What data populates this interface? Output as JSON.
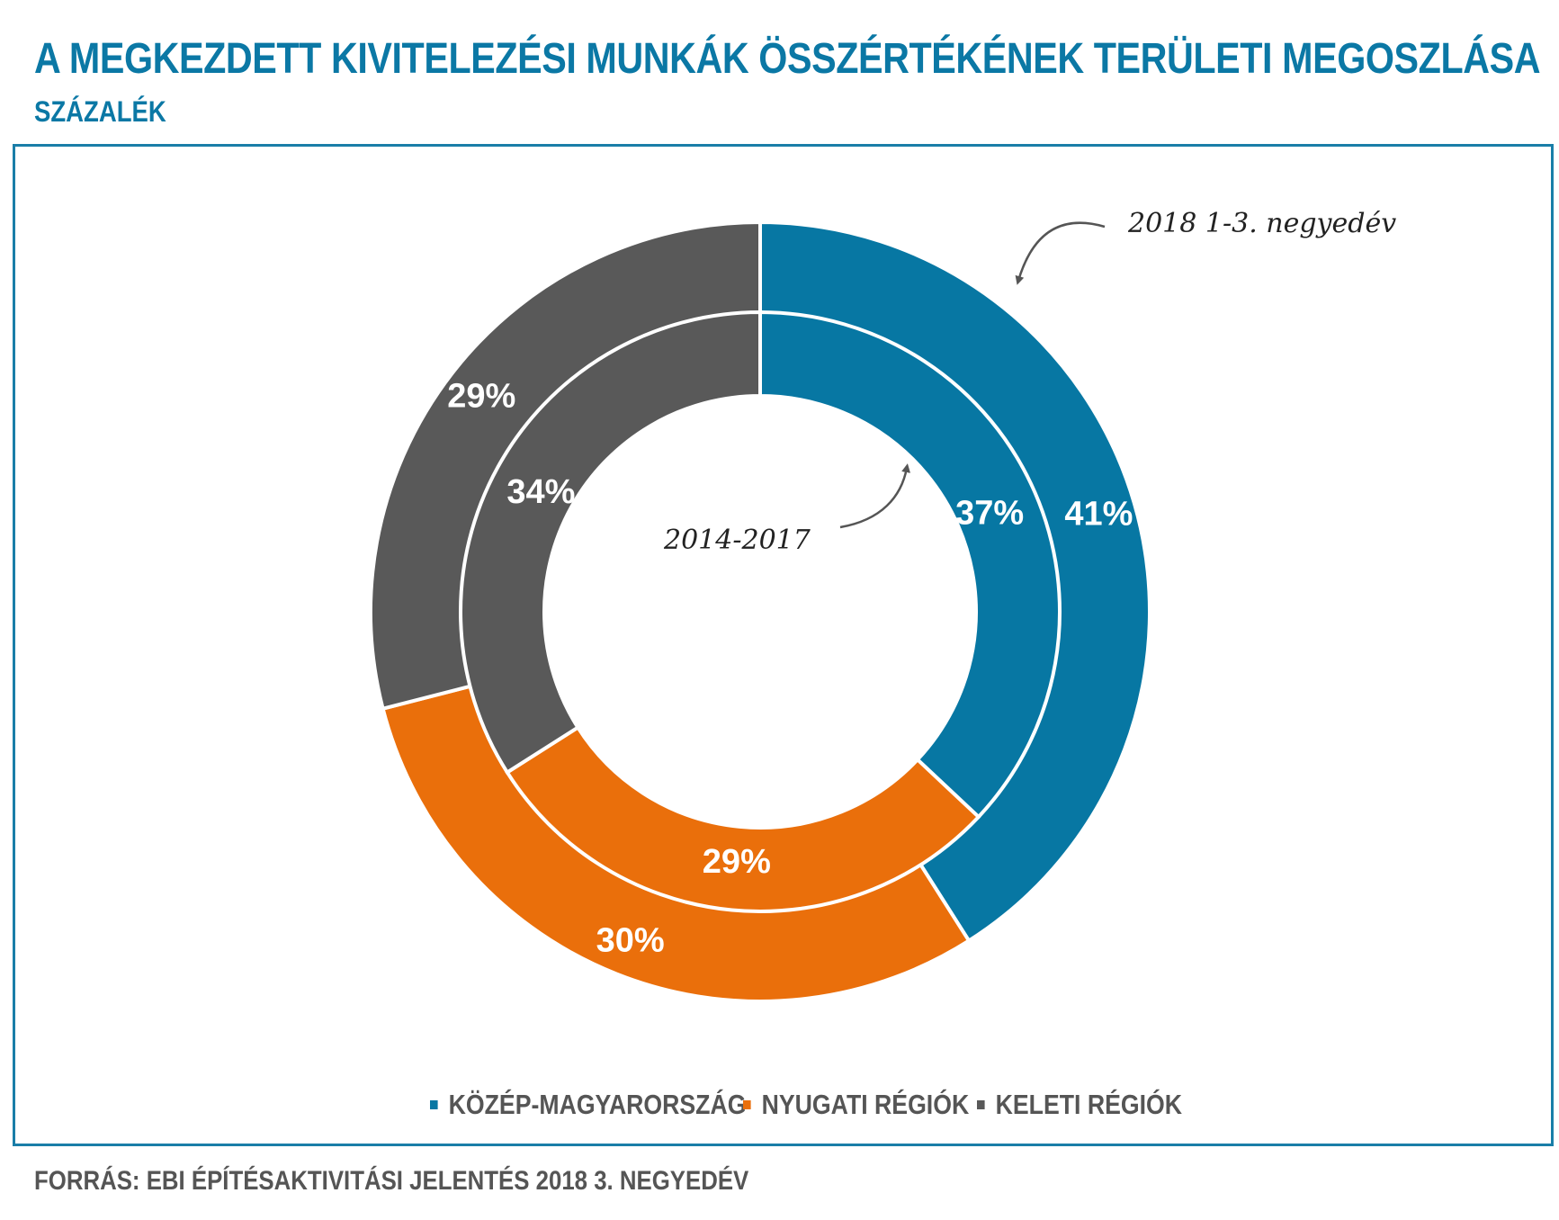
{
  "title": "A MEGKEZDETT KIVITELEZÉSI MUNKÁK ÖSSZÉRTÉKÉNEK TERÜLETI MEGOSZLÁSA",
  "subtitle": "SZÁZALÉK",
  "source": "FORRÁS: EBI ÉPÍTÉSAKTIVITÁSI JELENTÉS 2018 3. NEGYEDÉV",
  "colors": {
    "kozep": "#0777a3",
    "nyugati": "#ea6f0b",
    "keleti": "#595959",
    "frame": "#1a7ea8"
  },
  "chart_data": {
    "type": "pie",
    "subtype": "double-donut",
    "categories": [
      "KÖZÉP-MAGYARORSZÁG",
      "NYUGATI RÉGIÓK",
      "KELETI RÉGIÓK"
    ],
    "series": [
      {
        "name": "2018 1-3. negyedév",
        "ring": "outer",
        "values": [
          41,
          30,
          29
        ],
        "labels": [
          "41%",
          "30%",
          "29%"
        ]
      },
      {
        "name": "2014-2017",
        "ring": "inner",
        "values": [
          37,
          29,
          34
        ],
        "labels": [
          "37%",
          "29%",
          "34%"
        ]
      }
    ],
    "legend_position": "bottom"
  },
  "legend": [
    {
      "label": "KÖZÉP-MAGYARORSZÁG",
      "color_key": "kozep"
    },
    {
      "label": "NYUGATI RÉGIÓK",
      "color_key": "nyugati"
    },
    {
      "label": "KELETI RÉGIÓK",
      "color_key": "keleti"
    }
  ],
  "annotations": {
    "outer": "2018 1-3. negyedév",
    "inner": "2014-2017"
  }
}
